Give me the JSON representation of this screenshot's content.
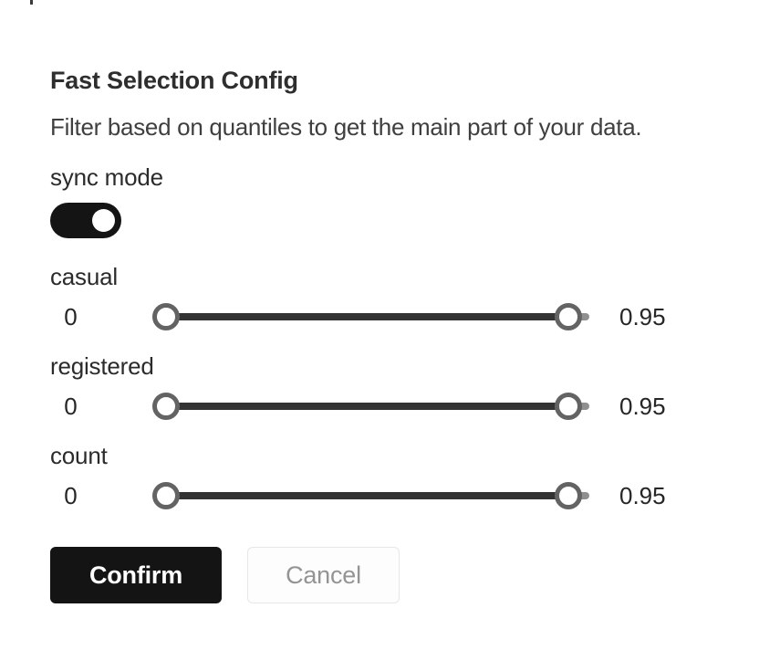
{
  "panel": {
    "title": "Fast Selection Config",
    "description": "Filter based on quantiles to get the main part of your data.",
    "sync_mode": {
      "label": "sync mode",
      "enabled": true
    },
    "sliders": [
      {
        "label": "casual",
        "min_label": "0",
        "max_label": "0.95",
        "value_low": 0,
        "value_high": 0.95,
        "range_min": 0,
        "range_max": 1
      },
      {
        "label": "registered",
        "min_label": "0",
        "max_label": "0.95",
        "value_low": 0,
        "value_high": 0.95,
        "range_min": 0,
        "range_max": 1
      },
      {
        "label": "count",
        "min_label": "0",
        "max_label": "0.95",
        "value_low": 0,
        "value_high": 0.95,
        "range_min": 0,
        "range_max": 1
      }
    ],
    "buttons": {
      "confirm_label": "Confirm",
      "cancel_label": "Cancel"
    },
    "colors": {
      "accent_dark": "#141414",
      "track_selected": "#333333",
      "rail_gray": "#8f8f8f",
      "handle_border": "#636363",
      "cancel_text": "#949494",
      "cancel_border": "#e7e7e7"
    }
  }
}
